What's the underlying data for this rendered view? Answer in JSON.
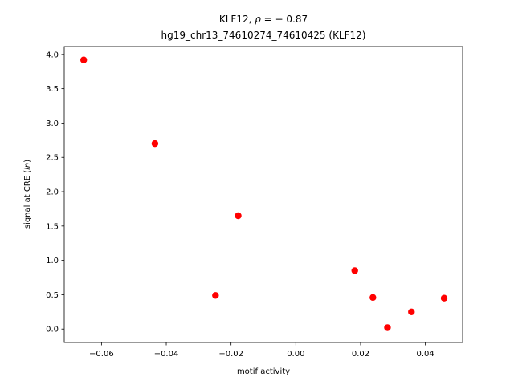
{
  "chart_data": {
    "type": "scatter",
    "title_line1_prefix": "KLF12, ",
    "title_line1_rho": "ρ",
    "title_line1_suffix": " = − 0.87",
    "title_line2": "hg19_chr13_74610274_74610425 (KLF12)",
    "xlabel": "motif activity",
    "ylabel_prefix": "signal at CRE (",
    "ylabel_italic": "ln",
    "ylabel_suffix": ")",
    "xlim": [
      -0.0715,
      0.0515
    ],
    "ylim": [
      -0.196,
      4.115
    ],
    "xticks": [
      {
        "value": -0.06,
        "label": "−0.06"
      },
      {
        "value": -0.04,
        "label": "−0.04"
      },
      {
        "value": -0.02,
        "label": "−0.02"
      },
      {
        "value": 0.0,
        "label": "0.00"
      },
      {
        "value": 0.02,
        "label": "0.02"
      },
      {
        "value": 0.04,
        "label": "0.04"
      }
    ],
    "yticks": [
      {
        "value": 0.0,
        "label": "0.0"
      },
      {
        "value": 0.5,
        "label": "0.5"
      },
      {
        "value": 1.0,
        "label": "1.0"
      },
      {
        "value": 1.5,
        "label": "1.5"
      },
      {
        "value": 2.0,
        "label": "2.0"
      },
      {
        "value": 2.5,
        "label": "2.5"
      },
      {
        "value": 3.0,
        "label": "3.0"
      },
      {
        "value": 3.5,
        "label": "3.5"
      },
      {
        "value": 4.0,
        "label": "4.0"
      }
    ],
    "series": [
      {
        "color": "#ff0000",
        "points": [
          {
            "x": -0.0655,
            "y": 3.92
          },
          {
            "x": -0.0435,
            "y": 2.7
          },
          {
            "x": -0.0248,
            "y": 0.49
          },
          {
            "x": -0.0178,
            "y": 1.65
          },
          {
            "x": 0.0182,
            "y": 0.85
          },
          {
            "x": 0.0238,
            "y": 0.46
          },
          {
            "x": 0.0283,
            "y": 0.02
          },
          {
            "x": 0.0357,
            "y": 0.25
          },
          {
            "x": 0.0458,
            "y": 0.45
          }
        ]
      }
    ],
    "grid": false
  }
}
